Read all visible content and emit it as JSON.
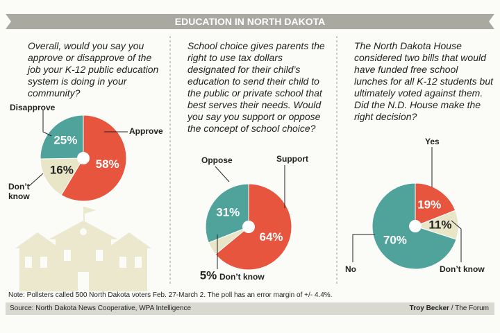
{
  "title": "EDUCATION IN NORTH DAKOTA",
  "chart_data": [
    {
      "type": "pie",
      "question": "Overall, would you say you approve or disapprove of the job your K-12 public education system is doing in your community?",
      "categories": [
        "Approve",
        "Don’t know",
        "Disapprove"
      ],
      "values": [
        58,
        16,
        25
      ],
      "value_labels": [
        "58%",
        "16%",
        "25%"
      ],
      "colors": [
        "#e8553f",
        "#e9e6c8",
        "#4fa39a"
      ]
    },
    {
      "type": "pie",
      "question": "School choice gives parents the right to use tax dollars designated for their child’s education to send their child to the public or private school that best serves their needs. Would you say you support or oppose the concept of school choice?",
      "categories": [
        "Support",
        "Don’t know",
        "Oppose"
      ],
      "values": [
        64,
        5,
        31
      ],
      "value_labels": [
        "64%",
        "5%",
        "31%"
      ],
      "colors": [
        "#e8553f",
        "#e9e6c8",
        "#4fa39a"
      ]
    },
    {
      "type": "pie",
      "question": "The North Dakota House considered two bills that would have funded free school lunches for all K-12 students but ultimately voted against them. Did the N.D. House make the right decision?",
      "categories": [
        "Yes",
        "Don’t know",
        "No"
      ],
      "values": [
        19,
        11,
        70
      ],
      "value_labels": [
        "19%",
        "11%",
        "70%"
      ],
      "colors": [
        "#e8553f",
        "#e9e6c8",
        "#4fa39a"
      ]
    }
  ],
  "note": "Note: Pollsters called 500 North Dakota voters Feb. 27-March 2. The poll has an error margin of +/- 4.4%.",
  "source": "Source: North Dakota News Cooperative, WPA Intelligence",
  "credit_name": "Troy Becker",
  "credit_outlet": "/ The Forum"
}
